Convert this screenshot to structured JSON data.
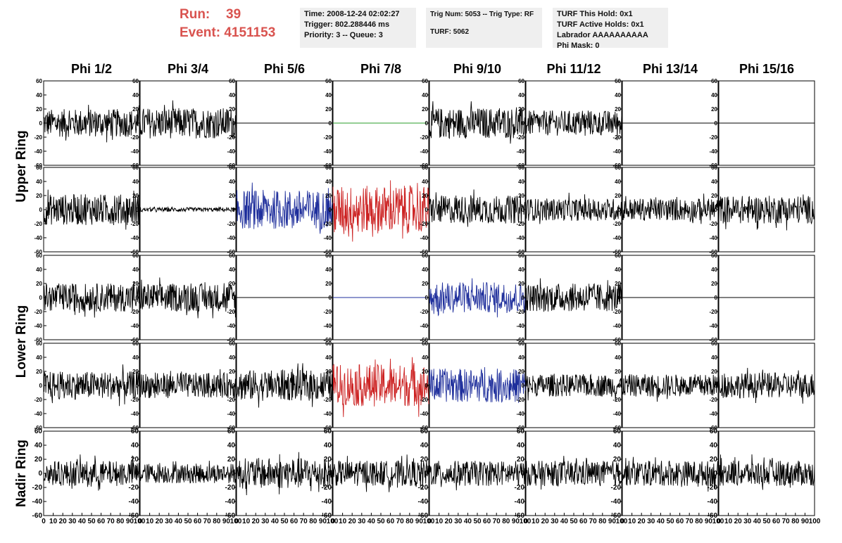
{
  "header": {
    "run_label": "Run:",
    "run_value": "39",
    "event_label": "Event:",
    "event_value": "4151153",
    "time": "Time: 2008-12-24 02:02:27",
    "trigger": "Trigger: 802.288446 ms",
    "priority": "Priority: 3 -- Queue: 3",
    "trig_num": "Trig Num: 5053 -- Trig Type: RF",
    "turf": "TURF: 5062",
    "turf_this_hold": "TURF This Hold: 0x1",
    "turf_active_holds": "TURF Active Holds: 0x1",
    "labrador": "Labrador AAAAAAAAAA",
    "phi_mask": "Phi Mask: 0"
  },
  "chart_data": {
    "type": "line",
    "grid": false,
    "columns": [
      "Phi 1/2",
      "Phi 3/4",
      "Phi 5/6",
      "Phi 7/8",
      "Phi 9/10",
      "Phi 11/12",
      "Phi 13/14",
      "Phi 15/16"
    ],
    "ring_labels": [
      {
        "label": "Upper Ring",
        "rows": [
          0,
          1
        ]
      },
      {
        "label": "Lower Ring",
        "rows": [
          2,
          3
        ]
      },
      {
        "label": "Nadir Ring",
        "rows": [
          4
        ]
      }
    ],
    "xlim": [
      0,
      100
    ],
    "ylim": [
      -60,
      60
    ],
    "x_ticks": [
      "0",
      "10",
      "20",
      "30",
      "40",
      "50",
      "60",
      "70",
      "80",
      "90",
      "100"
    ],
    "y_ticks": [
      "60",
      "40",
      "20",
      "0",
      "-20",
      "-40",
      "-60"
    ],
    "colors": {
      "black": "#000000",
      "blue": "#1f2f9c",
      "red": "#cc2222",
      "green": "#2a9d2a"
    },
    "panels": [
      [
        "black:20",
        "black:22",
        "flat-black",
        "flat-green",
        "black:22",
        "black:18",
        "flat-black",
        "flat-black"
      ],
      [
        "black:22",
        "black:3",
        "blue:28",
        "red:34",
        "black:20",
        "black:16",
        "black:16",
        "black:20"
      ],
      [
        "black:20",
        "black:20",
        "flat-black",
        "flat-blue",
        "blue:22",
        "black:20",
        "flat-black",
        "flat-black"
      ],
      [
        "black:20",
        "black:18",
        "black:22",
        "red:30",
        "blue:24",
        "black:16",
        "black:16",
        "black:18"
      ],
      [
        "black:18",
        "black:14",
        "black:22",
        "black:18",
        "black:18",
        "black:18",
        "black:18",
        "black:18"
      ]
    ]
  }
}
